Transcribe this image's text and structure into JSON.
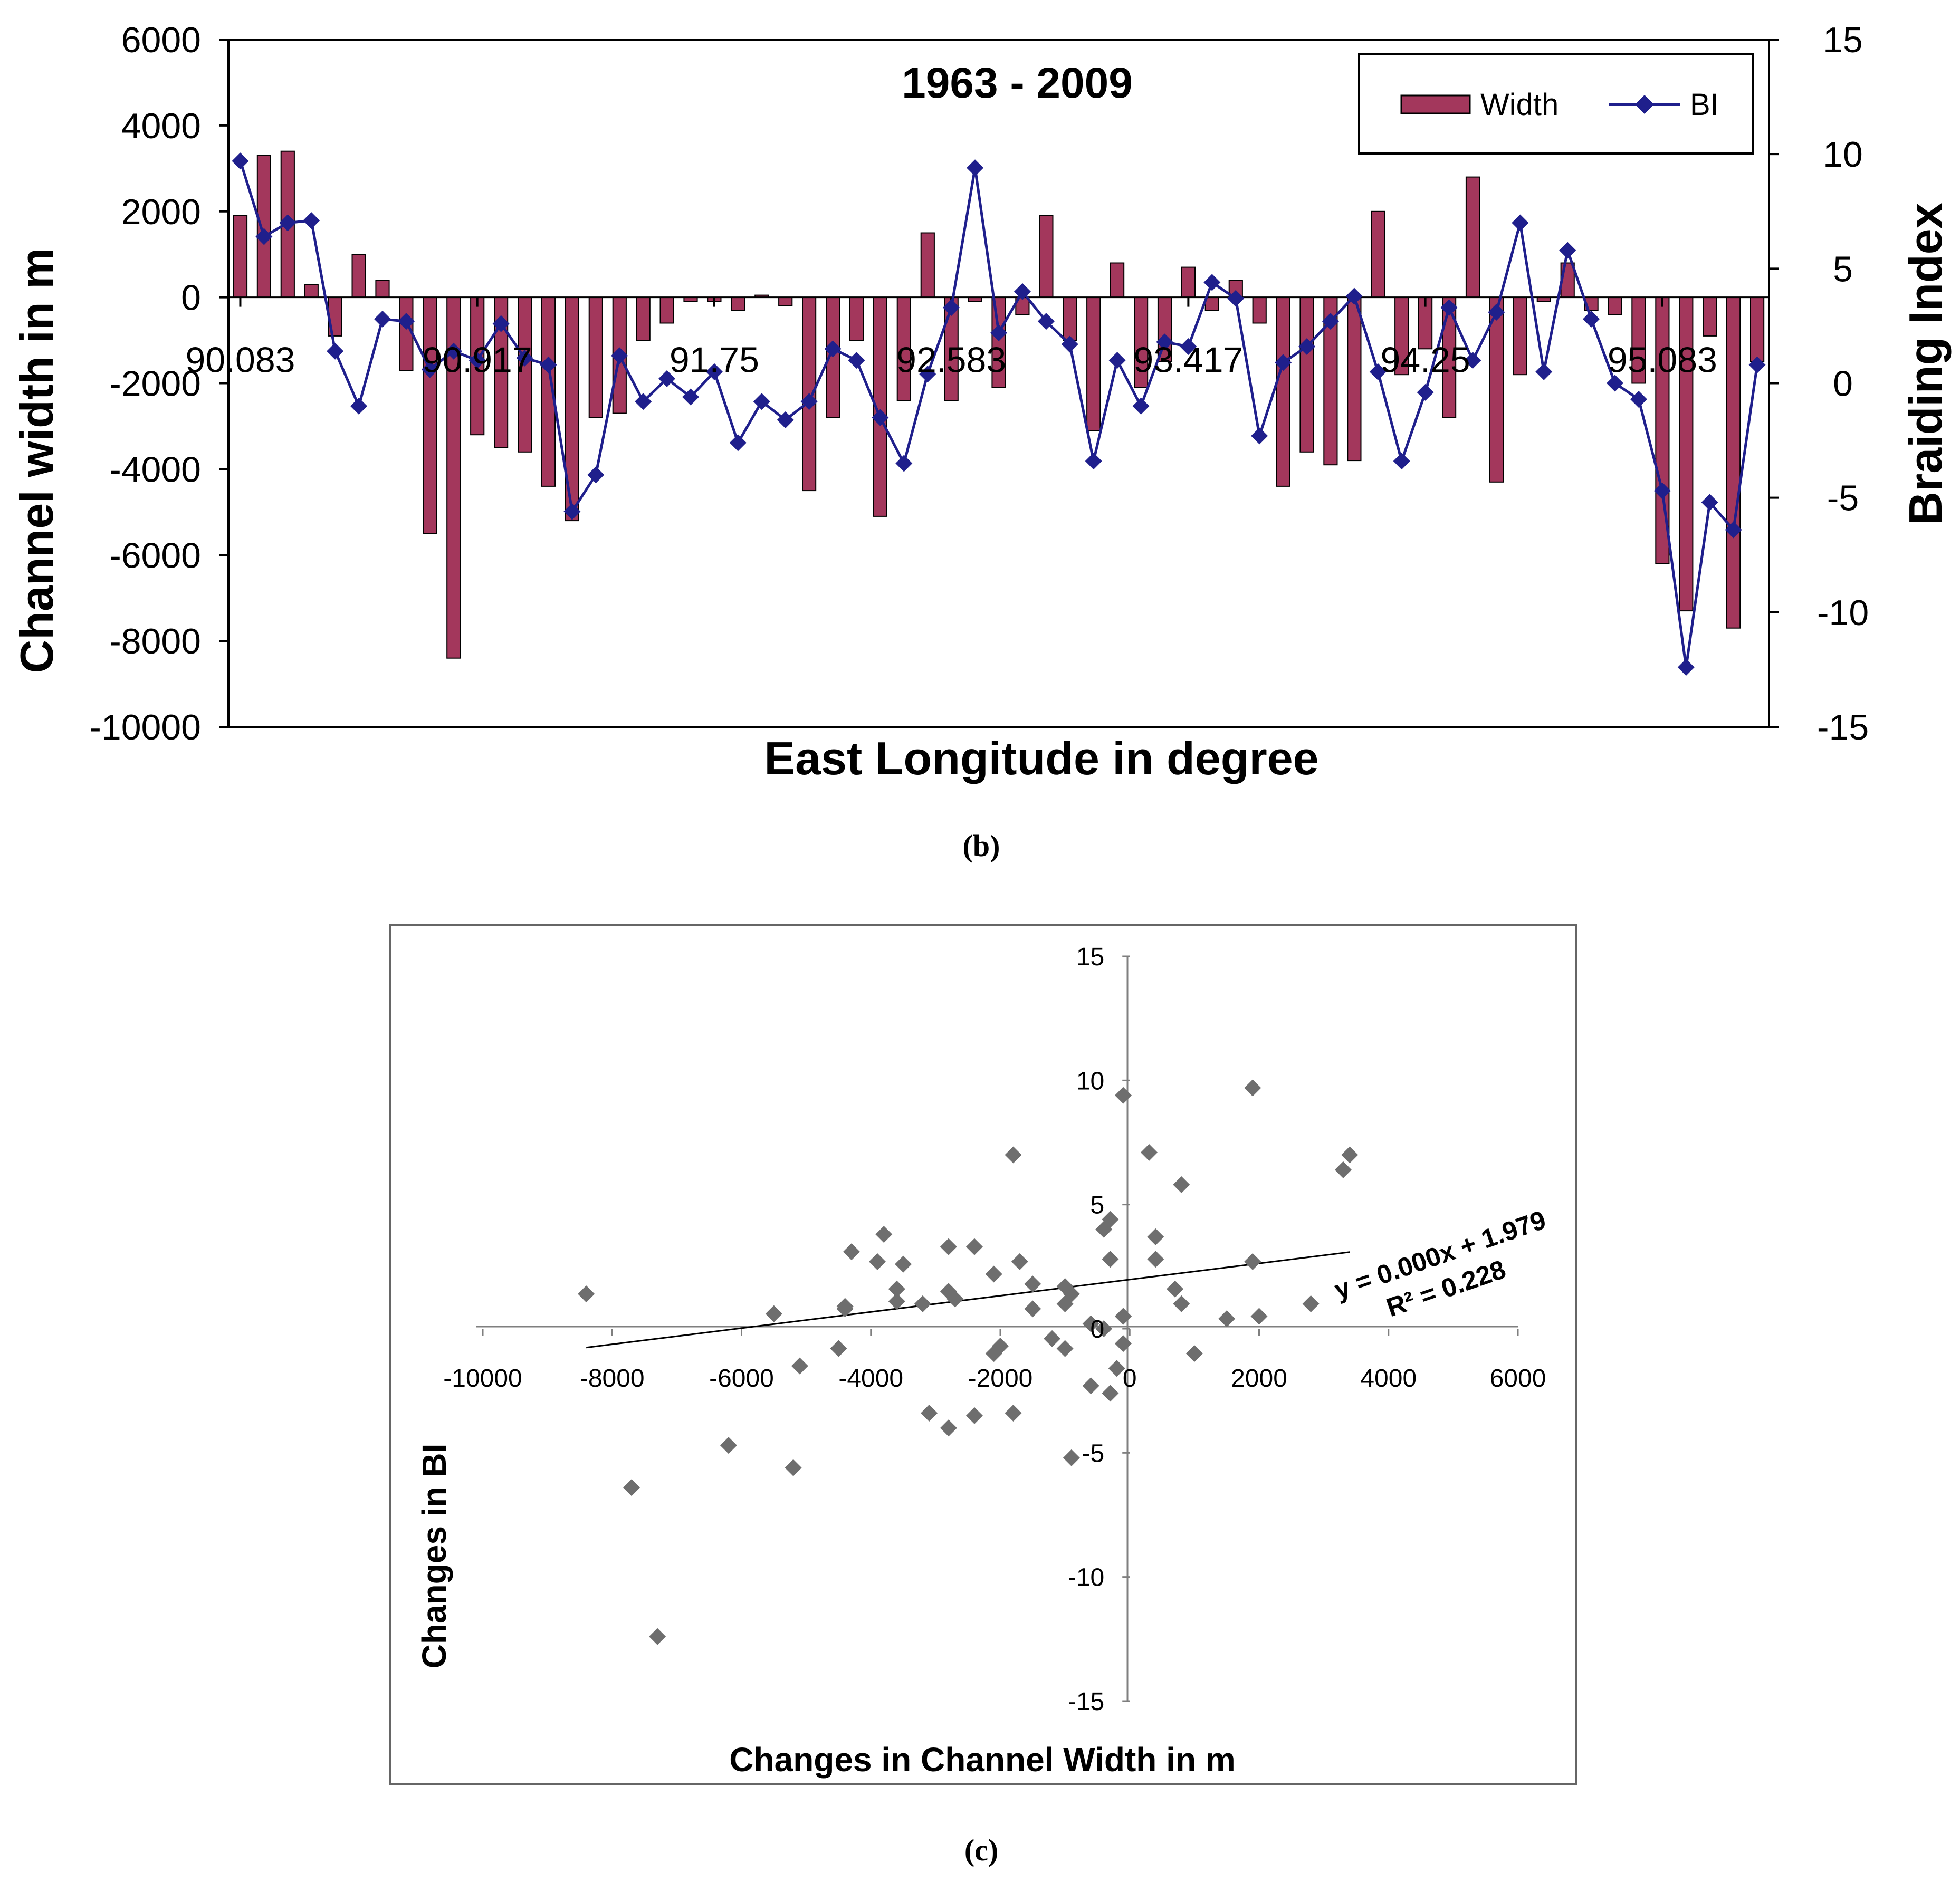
{
  "chart_data": [
    {
      "type": "bar",
      "title": "1963 - 2009",
      "xlabel": "East Longitude in degree",
      "ylabel": "Channel width in m",
      "y2label": "Braiding Index",
      "ylim": [
        -10000,
        6000
      ],
      "y2lim": [
        -15,
        15
      ],
      "yticks": [
        "6000",
        "4000",
        "2000",
        "0",
        "-2000",
        "-4000",
        "-6000",
        "-8000",
        "-10000"
      ],
      "y2ticks": [
        "15",
        "10",
        "5",
        "0",
        "-5",
        "-10",
        "-15"
      ],
      "x_tick_labels": [
        "90.083",
        "90.917",
        "91.75",
        "92.583",
        "93.417",
        "94.25",
        "95.083"
      ],
      "x_tick_label_index": [
        0,
        10,
        20,
        30,
        40,
        50,
        60
      ],
      "legend": [
        "Width",
        "BI"
      ],
      "legend_position": "top-right",
      "series": [
        {
          "name": "Width",
          "kind": "bar",
          "color": "#a3375c",
          "values": [
            1900,
            3300,
            3400,
            300,
            -900,
            1000,
            400,
            -1700,
            -5500,
            -8400,
            -3200,
            -3500,
            -3600,
            -4400,
            -5200,
            -2800,
            -2700,
            -1000,
            -600,
            -100,
            -100,
            -300,
            50,
            -200,
            -4500,
            -2800,
            -1000,
            -5100,
            -2400,
            1500,
            -2400,
            -100,
            -2100,
            -400,
            1900,
            -1000,
            -3100,
            800,
            -2100,
            -1500,
            700,
            -300,
            400,
            -600,
            -4400,
            -3600,
            -3900,
            -3800,
            2000,
            -1800,
            -1200,
            -2800,
            2800,
            -4300,
            -1800,
            -100,
            800,
            -300,
            -400,
            -2000,
            -6200,
            -7300,
            -900,
            -7700,
            -1500
          ]
        },
        {
          "name": "BI",
          "kind": "line",
          "color": "#1f1f8c",
          "values": [
            9.7,
            6.4,
            7.0,
            7.1,
            1.4,
            -1.0,
            2.8,
            2.7,
            0.6,
            1.4,
            1.0,
            2.6,
            1.1,
            0.8,
            -5.6,
            -4.0,
            1.2,
            -0.8,
            0.2,
            -0.6,
            0.5,
            -2.6,
            -0.8,
            -1.6,
            -0.8,
            1.5,
            1.0,
            -1.5,
            -3.5,
            0.4,
            3.3,
            9.4,
            2.2,
            4.0,
            2.7,
            1.7,
            -3.4,
            1.0,
            -1.0,
            1.8,
            1.6,
            4.4,
            3.7,
            -2.3,
            0.9,
            1.6,
            2.7,
            3.8,
            0.5,
            -3.4,
            -0.4,
            3.3,
            1.0,
            3.1,
            7.0,
            0.5,
            5.8,
            2.8,
            0.0,
            -0.7,
            -4.7,
            -12.4,
            -5.2,
            -6.4,
            0.8
          ]
        }
      ]
    },
    {
      "type": "scatter",
      "xlabel": "Changes in Channel Width in m",
      "ylabel": "Changes in BI",
      "xlim": [
        -10000,
        6000
      ],
      "ylim": [
        -15,
        15
      ],
      "xticks": [
        "-10000",
        "-8000",
        "-6000",
        "-4000",
        "-2000",
        "0",
        "2000",
        "4000",
        "6000"
      ],
      "yticks": [
        "15",
        "10",
        "5",
        "0",
        "-5",
        "-10",
        "-15"
      ],
      "trendline": {
        "slope": 0.000326,
        "intercept": 1.979,
        "x_range": [
          -8400,
          3400
        ]
      },
      "equation_label": "y = 0.000x + 1.979",
      "r2_label": "R² = 0.228",
      "x": [
        1900,
        3300,
        3400,
        300,
        -900,
        1000,
        400,
        -1700,
        -5500,
        -8400,
        -3200,
        -3500,
        -3600,
        -4400,
        -5200,
        -2800,
        -2700,
        -1000,
        -600,
        -100,
        -100,
        -300,
        -200,
        -4500,
        -2800,
        -1000,
        -5100,
        -2400,
        1500,
        -2400,
        -100,
        -2100,
        -400,
        1900,
        -1000,
        -3100,
        800,
        -2100,
        -1500,
        700,
        -300,
        400,
        -600,
        -4400,
        -3600,
        -3900,
        -3800,
        2000,
        -1800,
        -1200,
        -2800,
        2800,
        -4300,
        -1800,
        -100,
        800,
        -300,
        -400,
        -2000,
        -6200,
        -7300,
        -900,
        -7700,
        -1500
      ],
      "y": [
        9.7,
        6.4,
        7.0,
        7.1,
        1.4,
        -1.0,
        2.8,
        2.7,
        0.6,
        1.4,
        1.0,
        2.6,
        1.1,
        0.8,
        -5.6,
        -4.0,
        1.2,
        -0.8,
        0.2,
        -0.6,
        0.5,
        -2.6,
        -1.6,
        -0.8,
        1.5,
        1.0,
        -1.5,
        -3.5,
        0.4,
        3.3,
        9.4,
        2.2,
        4.0,
        2.7,
        1.7,
        -3.4,
        1.0,
        -1.0,
        1.8,
        1.6,
        4.4,
        3.7,
        -2.3,
        0.9,
        1.6,
        2.7,
        3.8,
        0.5,
        -3.4,
        -0.4,
        3.3,
        1.0,
        3.1,
        7.0,
        0.5,
        5.8,
        2.8,
        0.0,
        -0.7,
        -4.7,
        -12.4,
        -5.2,
        -6.4,
        0.8
      ]
    }
  ],
  "captions": {
    "b": "(b)",
    "c": "(c)"
  },
  "colors": {
    "bar": "#a3375c",
    "line": "#1f1f8c",
    "scatter": "#6e6e6e",
    "axis": "#000000"
  }
}
